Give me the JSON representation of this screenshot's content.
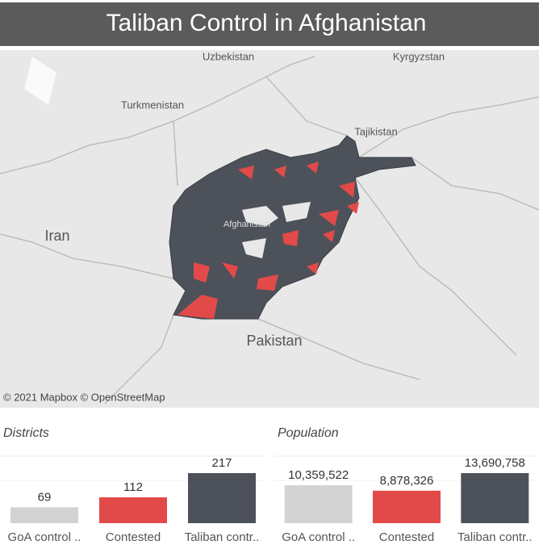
{
  "header": {
    "title": "Taliban Control in Afghanistan"
  },
  "map": {
    "labels": [
      "Uzbekistan",
      "Kyrgyzstan",
      "Turkmenistan",
      "Tajikistan",
      "Iran",
      "Afghanistan",
      "Pakistan"
    ],
    "attribution": "© 2021 Mapbox © OpenStreetMap"
  },
  "chart_data": [
    {
      "type": "bar",
      "title": "Districts",
      "categories": [
        "GoA control ..",
        "Contested",
        "Taliban contr.."
      ],
      "values": [
        69,
        112,
        217
      ],
      "colors": [
        "#d3d3d3",
        "#e24a4a",
        "#4d525a"
      ]
    },
    {
      "type": "bar",
      "title": "Population",
      "categories": [
        "GoA control ..",
        "Contested",
        "Taliban contr.."
      ],
      "values": [
        10359522,
        8878326,
        13690758
      ],
      "value_labels": [
        "10,359,522",
        "8,878,326",
        "13,690,758"
      ],
      "colors": [
        "#d3d3d3",
        "#e24a4a",
        "#4d525a"
      ]
    }
  ]
}
